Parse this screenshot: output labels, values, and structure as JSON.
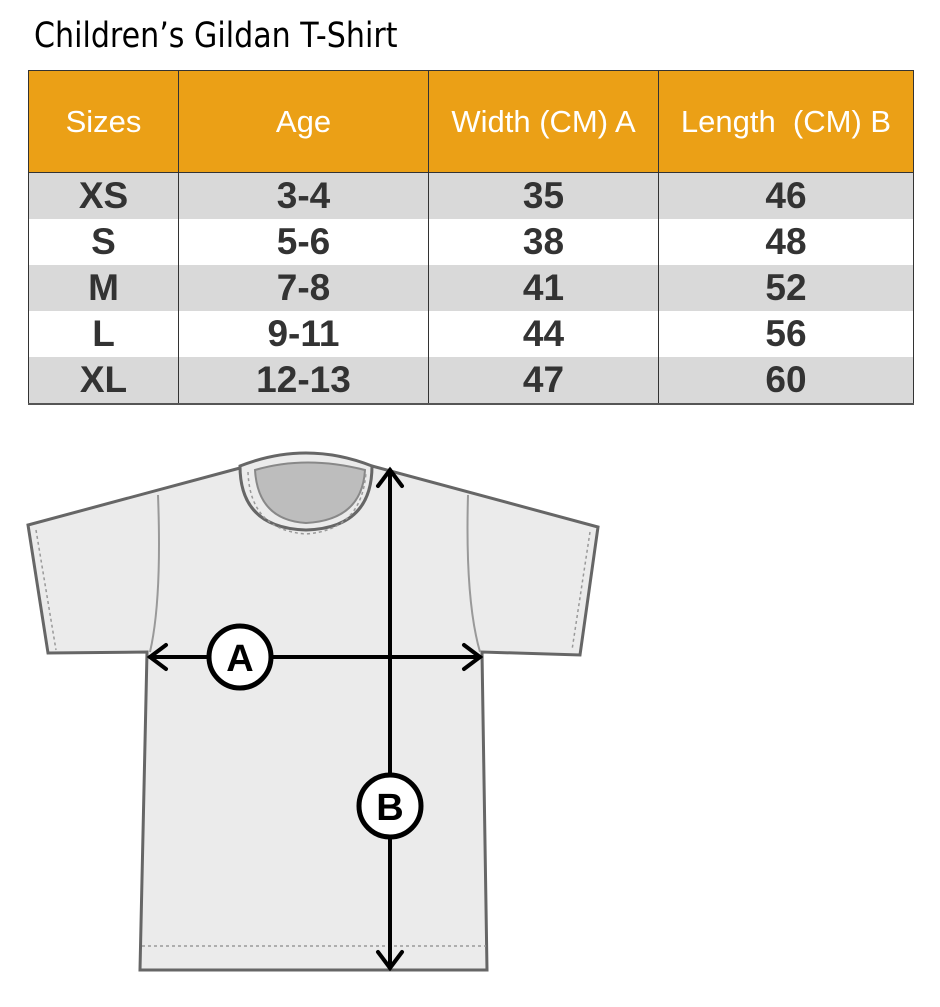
{
  "title": "Children’s Gildan T-Shirt",
  "table": {
    "headers": [
      "Sizes",
      "Age",
      "Width (CM) A",
      "Length  (CM) B"
    ],
    "rows": [
      [
        "XS",
        "3-4",
        "35",
        "46"
      ],
      [
        "S",
        "5-6",
        "38",
        "48"
      ],
      [
        "M",
        "7-8",
        "41",
        "52"
      ],
      [
        "L",
        "9-11",
        "44",
        "56"
      ],
      [
        "XL",
        "12-13",
        "47",
        "60"
      ]
    ]
  },
  "diagram": {
    "label_a": "A",
    "label_b": "B"
  },
  "colors": {
    "header": "#eba016",
    "row_alt": "#d9d9d9",
    "shirt": "#ebebeb"
  }
}
